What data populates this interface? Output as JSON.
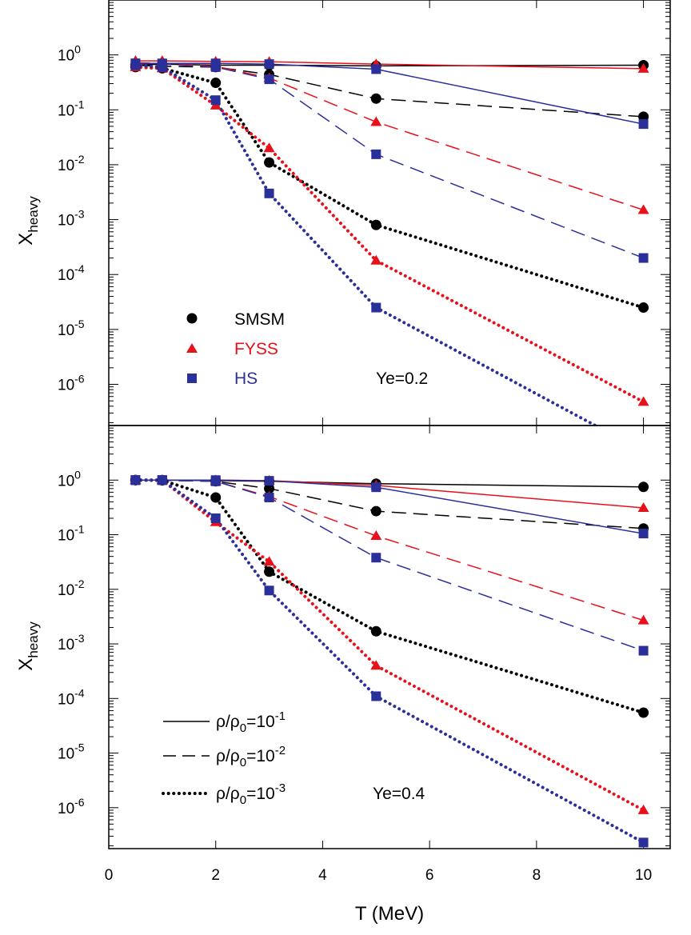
{
  "colors": {
    "SMSM": "#000000",
    "FYSS": "#e8101a",
    "HS": "#2b2f99"
  },
  "chart_data": [
    {
      "type": "line",
      "panel": "top",
      "xlabel": "T (MeV)",
      "ylabel": {
        "main": "X",
        "sub": "heavy"
      },
      "xlim": [
        0,
        10.5
      ],
      "ylim_log10": [
        -6.75,
        1.0
      ],
      "yscale": "log",
      "x_ticks": [
        "0",
        "2",
        "4",
        "6",
        "8",
        "10"
      ],
      "y_ticks": [
        {
          "base": "10",
          "exp": "0"
        },
        {
          "base": "10",
          "exp": "-1"
        },
        {
          "base": "10",
          "exp": "-2"
        },
        {
          "base": "10",
          "exp": "-3"
        },
        {
          "base": "10",
          "exp": "-4"
        },
        {
          "base": "10",
          "exp": "-5"
        },
        {
          "base": "10",
          "exp": "-6"
        }
      ],
      "annotation": "Ye=0.2",
      "legend": [
        {
          "label": "SMSM",
          "marker": "circle"
        },
        {
          "label": "FYSS",
          "marker": "triangle"
        },
        {
          "label": "HS",
          "marker": "square"
        }
      ],
      "series": [
        {
          "model": "SMSM",
          "density": "1e-1",
          "marker": "circle",
          "x": [
            0.5,
            1,
            2,
            3,
            5,
            10
          ],
          "y": [
            0.65,
            0.68,
            0.65,
            0.65,
            0.63,
            0.65
          ]
        },
        {
          "model": "SMSM",
          "density": "1e-2",
          "marker": "circle",
          "x": [
            0.5,
            1,
            2,
            3,
            5,
            10
          ],
          "y": [
            0.65,
            0.62,
            0.6,
            0.44,
            0.16,
            0.075
          ]
        },
        {
          "model": "SMSM",
          "density": "1e-3",
          "marker": "circle",
          "x": [
            0.5,
            1,
            2,
            3,
            5,
            10
          ],
          "y": [
            0.6,
            0.57,
            0.31,
            0.011,
            0.0008,
            2.5e-05
          ]
        },
        {
          "model": "FYSS",
          "density": "1e-1",
          "marker": "triangle",
          "x": [
            0.5,
            1,
            2,
            3,
            5,
            10
          ],
          "y": [
            0.78,
            0.78,
            0.76,
            0.75,
            0.68,
            0.56
          ]
        },
        {
          "model": "FYSS",
          "density": "1e-2",
          "marker": "triangle",
          "x": [
            0.5,
            1,
            2,
            3,
            5,
            10
          ],
          "y": [
            0.72,
            0.7,
            0.62,
            0.38,
            0.06,
            0.0015
          ]
        },
        {
          "model": "FYSS",
          "density": "1e-3",
          "marker": "triangle",
          "x": [
            0.5,
            1,
            2,
            3,
            5,
            10
          ],
          "y": [
            0.6,
            0.57,
            0.12,
            0.02,
            0.00018,
            4.8e-07
          ]
        },
        {
          "model": "HS",
          "density": "1e-1",
          "marker": "square",
          "x": [
            0.5,
            1,
            2,
            3,
            5,
            10
          ],
          "y": [
            0.7,
            0.7,
            0.7,
            0.68,
            0.55,
            0.055
          ]
        },
        {
          "model": "HS",
          "density": "1e-2",
          "marker": "square",
          "x": [
            0.5,
            1,
            2,
            3,
            5,
            10
          ],
          "y": [
            0.7,
            0.68,
            0.6,
            0.36,
            0.0155,
            0.0002
          ]
        },
        {
          "model": "HS",
          "density": "1e-3",
          "marker": "square",
          "x": [
            0.5,
            1,
            2,
            3,
            5,
            10
          ],
          "y": [
            0.65,
            0.6,
            0.15,
            0.003,
            2.5e-05,
            6e-08
          ]
        }
      ]
    },
    {
      "type": "line",
      "panel": "bottom",
      "xlabel": "T (MeV)",
      "ylabel": {
        "main": "X",
        "sub": "heavy"
      },
      "xlim": [
        0,
        10.5
      ],
      "ylim_log10": [
        -6.75,
        1.0
      ],
      "yscale": "log",
      "x_ticks": [
        "0",
        "2",
        "4",
        "6",
        "8",
        "10"
      ],
      "y_ticks": [
        {
          "base": "10",
          "exp": "0"
        },
        {
          "base": "10",
          "exp": "-1"
        },
        {
          "base": "10",
          "exp": "-2"
        },
        {
          "base": "10",
          "exp": "-3"
        },
        {
          "base": "10",
          "exp": "-4"
        },
        {
          "base": "10",
          "exp": "-5"
        },
        {
          "base": "10",
          "exp": "-6"
        }
      ],
      "annotation": "Ye=0.4",
      "legend": [
        {
          "label_main": "ρ/ρ",
          "label_sub": "0",
          "label_eq": "=10",
          "label_exp": "-1",
          "line": "solid"
        },
        {
          "label_main": "ρ/ρ",
          "label_sub": "0",
          "label_eq": "=10",
          "label_exp": "-2",
          "line": "dashed"
        },
        {
          "label_main": "ρ/ρ",
          "label_sub": "0",
          "label_eq": "=10",
          "label_exp": "-3",
          "line": "dotted"
        }
      ],
      "series": [
        {
          "model": "SMSM",
          "density": "1e-1",
          "marker": "circle",
          "x": [
            0.5,
            1,
            2,
            3,
            5,
            10
          ],
          "y": [
            1.0,
            1.0,
            0.98,
            0.95,
            0.86,
            0.75
          ]
        },
        {
          "model": "SMSM",
          "density": "1e-2",
          "marker": "circle",
          "x": [
            0.5,
            1,
            2,
            3,
            5,
            10
          ],
          "y": [
            1.0,
            0.99,
            0.95,
            0.7,
            0.27,
            0.13
          ]
        },
        {
          "model": "SMSM",
          "density": "1e-3",
          "marker": "circle",
          "x": [
            0.5,
            1,
            2,
            3,
            5,
            10
          ],
          "y": [
            1.0,
            0.99,
            0.48,
            0.021,
            0.0017,
            5.5e-05
          ]
        },
        {
          "model": "FYSS",
          "density": "1e-1",
          "marker": "triangle",
          "x": [
            0.5,
            1,
            2,
            3,
            5,
            10
          ],
          "y": [
            1.0,
            1.0,
            1.0,
            0.98,
            0.8,
            0.31
          ]
        },
        {
          "model": "FYSS",
          "density": "1e-2",
          "marker": "triangle",
          "x": [
            0.5,
            1,
            2,
            3,
            5,
            10
          ],
          "y": [
            1.0,
            1.0,
            0.95,
            0.5,
            0.095,
            0.0027
          ]
        },
        {
          "model": "FYSS",
          "density": "1e-3",
          "marker": "triangle",
          "x": [
            0.5,
            1,
            2,
            3,
            5,
            10
          ],
          "y": [
            1.0,
            1.0,
            0.17,
            0.032,
            0.0004,
            9e-07
          ]
        },
        {
          "model": "HS",
          "density": "1e-1",
          "marker": "square",
          "x": [
            0.5,
            1,
            2,
            3,
            5,
            10
          ],
          "y": [
            1.0,
            1.0,
            1.0,
            0.97,
            0.74,
            0.105
          ]
        },
        {
          "model": "HS",
          "density": "1e-2",
          "marker": "square",
          "x": [
            0.5,
            1,
            2,
            3,
            5,
            10
          ],
          "y": [
            1.0,
            1.0,
            0.95,
            0.48,
            0.038,
            0.00075
          ]
        },
        {
          "model": "HS",
          "density": "1e-3",
          "marker": "square",
          "x": [
            0.5,
            1,
            2,
            3,
            5,
            10
          ],
          "y": [
            1.0,
            1.0,
            0.2,
            0.0095,
            0.00011,
            2.3e-07
          ]
        }
      ]
    }
  ]
}
